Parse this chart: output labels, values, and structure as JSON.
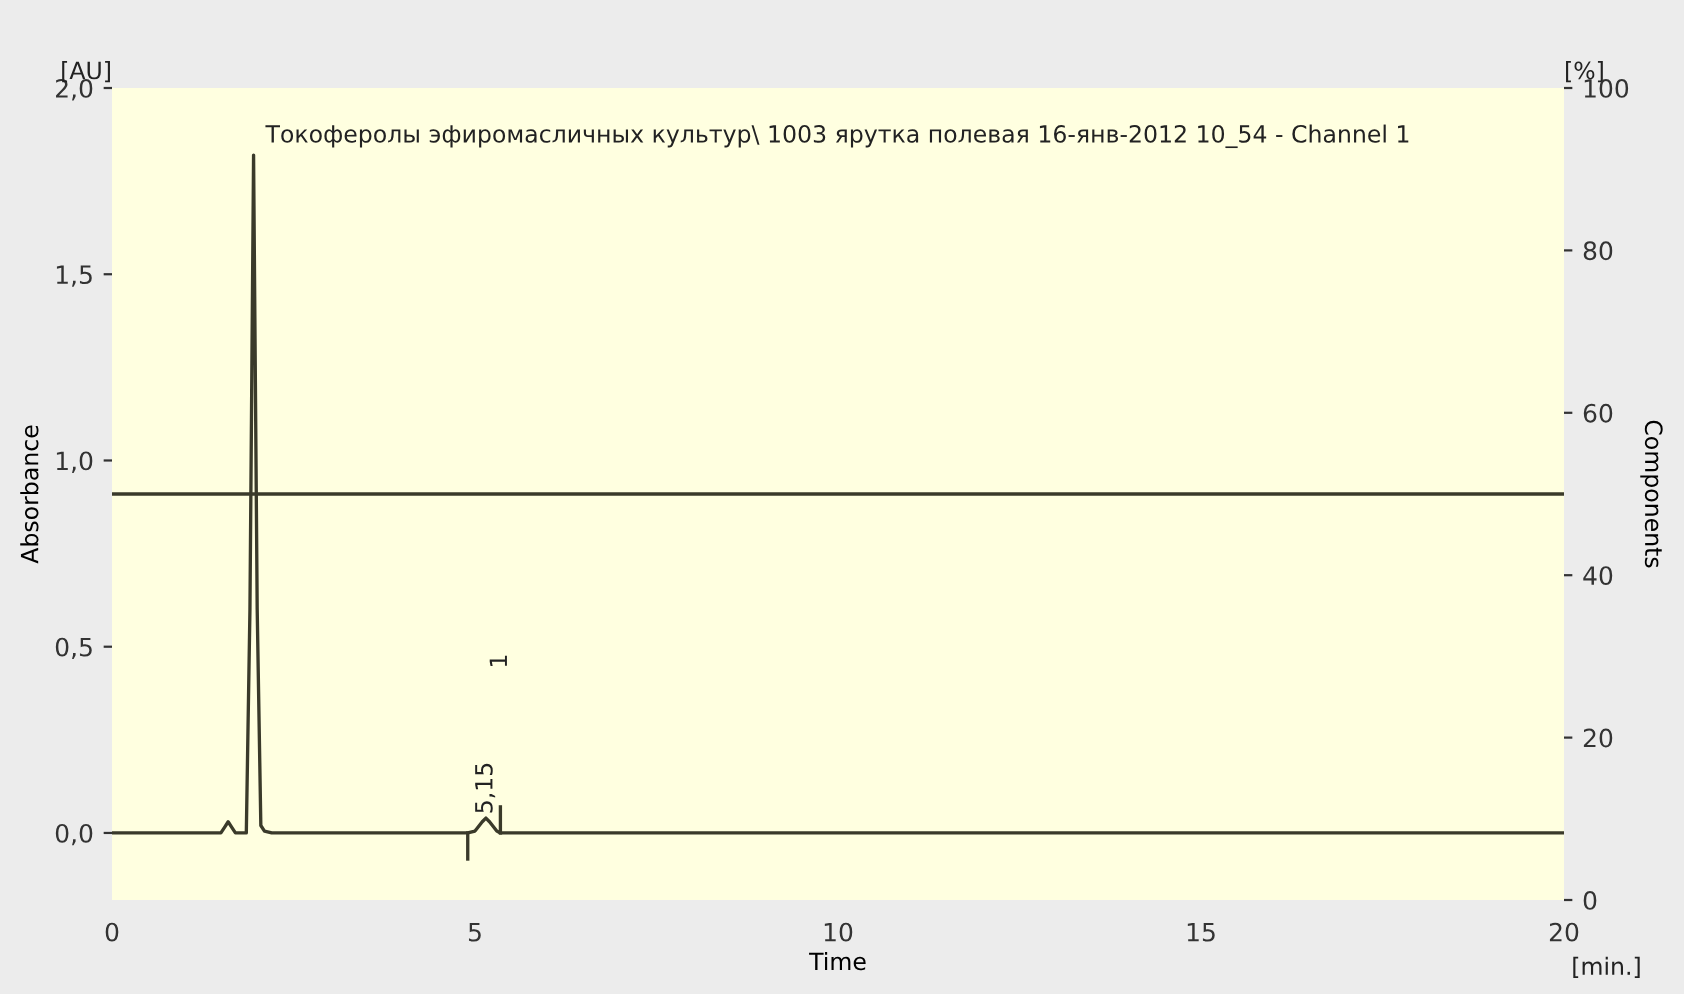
{
  "chart_data": {
    "type": "line",
    "title": "Токоферолы эфиромасличных культур\\ 1003 ярутка полевая 16-янв-2012 10_54 - Channel 1",
    "xlabel": "Time",
    "ylabel": "Absorbance",
    "y2label": "Components",
    "xlim": [
      0,
      20
    ],
    "xticks": [
      0,
      5,
      10,
      15,
      20
    ],
    "ylim": [
      -0.18,
      2.0
    ],
    "yticks": [
      {
        "value": 0,
        "label": "0,0"
      },
      {
        "value": 0.5,
        "label": "0,5"
      },
      {
        "value": 1.0,
        "label": "1,0"
      },
      {
        "value": 1.5,
        "label": "1,5"
      },
      {
        "value": 2.0,
        "label": "2,0"
      }
    ],
    "y2lim": [
      0,
      100
    ],
    "y2ticks": [
      0,
      20,
      40,
      60,
      80,
      100
    ],
    "series": [
      {
        "color": "#3a3a2a",
        "x": [
          0,
          1.5,
          1.55,
          1.6,
          1.65,
          1.7,
          1.85,
          1.9,
          1.95,
          2.0,
          2.05,
          2.1,
          2.2,
          2.5,
          4.5,
          4.9,
          5.0,
          5.1,
          5.15,
          5.2,
          5.3,
          5.35,
          5.5,
          20
        ],
        "values": [
          0,
          0,
          0.015,
          0.03,
          0.015,
          0,
          0,
          0.6,
          1.82,
          0.6,
          0.02,
          0.005,
          0,
          0,
          0,
          0,
          0.005,
          0.03,
          0.04,
          0.03,
          0.005,
          0,
          0,
          0
        ]
      },
      {
        "color": "#3a3a2a",
        "x": [
          4.9,
          4.9
        ],
        "values": [
          0,
          -0.07
        ]
      },
      {
        "color": "#3a3a2a",
        "x": [
          5.35,
          5.35
        ],
        "values": [
          0,
          0.07
        ]
      }
    ],
    "ref_lines": [
      {
        "axis": "y2",
        "value": 50,
        "color": "#3a3a2a"
      }
    ],
    "annotations": [
      "[AU]",
      "[%]",
      "[min.]",
      "1",
      {
        "text": "5,15",
        "x": 5.15,
        "y": 0.05
      }
    ],
    "grid": false
  }
}
